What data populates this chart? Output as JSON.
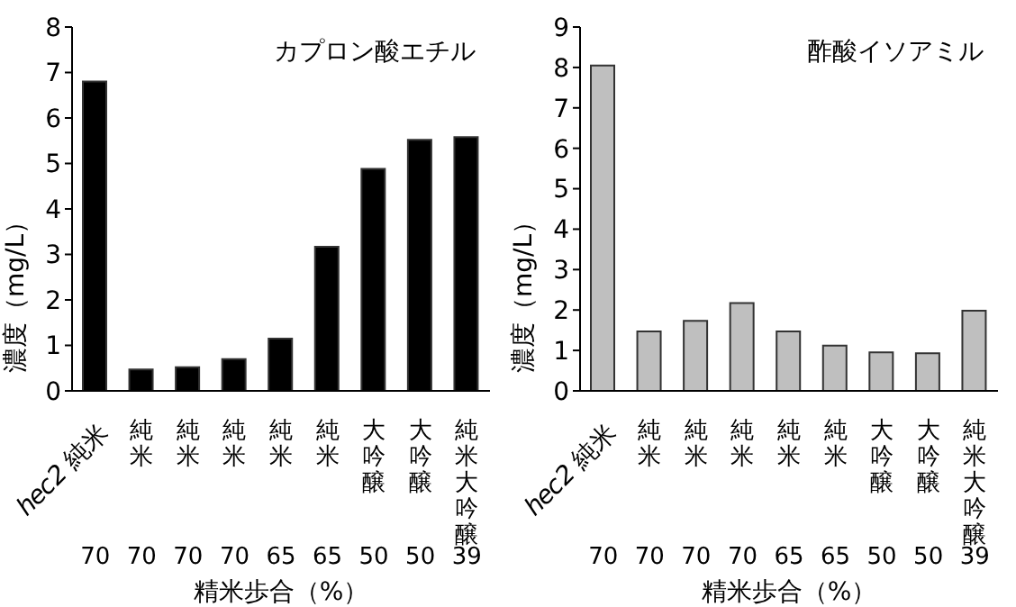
{
  "chart_data": [
    {
      "type": "bar",
      "title": "カプロン酸エチル",
      "categories": [
        "70",
        "70",
        "70",
        "70",
        "65",
        "65",
        "50",
        "50",
        "39"
      ],
      "annotations": [
        "hec2 純米",
        "純米",
        "純米",
        "純米",
        "純米",
        "純米",
        "大吟醸",
        "大吟醸",
        "純米大吟醸"
      ],
      "values": [
        6.8,
        0.47,
        0.52,
        0.7,
        1.15,
        3.17,
        4.88,
        5.52,
        5.58
      ],
      "color": "#000000",
      "ylabel": "濃度（mg/L）",
      "xlabel": "精米歩合（%）",
      "ylim": [
        0,
        8
      ],
      "yticks": [
        0,
        1,
        2,
        3,
        4,
        5,
        6,
        7,
        8
      ]
    },
    {
      "type": "bar",
      "title": "酢酸イソアミル",
      "categories": [
        "70",
        "70",
        "70",
        "70",
        "65",
        "65",
        "50",
        "50",
        "39"
      ],
      "annotations": [
        "hec2 純米",
        "純米",
        "純米",
        "純米",
        "純米",
        "純米",
        "大吟醸",
        "大吟醸",
        "純米大吟醸"
      ],
      "values": [
        8.05,
        1.47,
        1.73,
        2.17,
        1.47,
        1.12,
        0.95,
        0.93,
        1.98
      ],
      "color": "#bfbfbf",
      "ylabel": "濃度（mg/L）",
      "xlabel": "精米歩合（%）",
      "ylim": [
        0,
        9
      ],
      "yticks": [
        0,
        1,
        2,
        3,
        4,
        5,
        6,
        7,
        8,
        9
      ]
    }
  ]
}
